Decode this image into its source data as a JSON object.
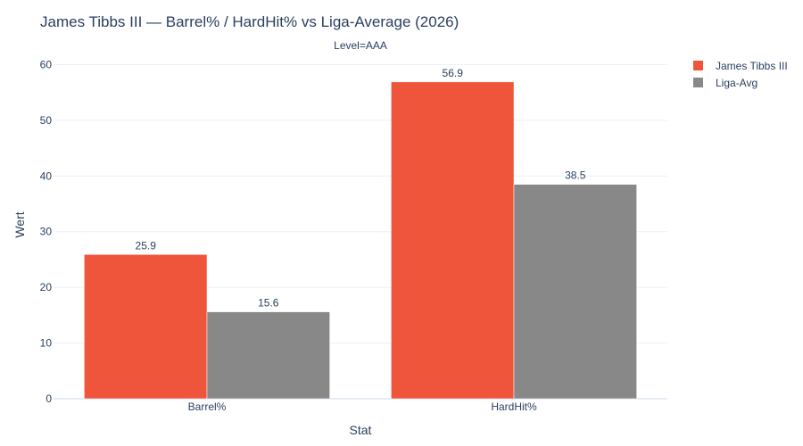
{
  "chart_data": {
    "type": "bar",
    "title": "James Tibbs III — Barrel% / HardHit% vs Liga-Average (2026)",
    "subtitle": "Level=AAA",
    "xlabel": "Stat",
    "ylabel": "Wert",
    "categories": [
      "Barrel%",
      "HardHit%"
    ],
    "series": [
      {
        "name": "James Tibbs III",
        "values": [
          25.9,
          56.9
        ],
        "color": "#ef553b"
      },
      {
        "name": "Liga-Avg",
        "values": [
          15.6,
          38.5
        ],
        "color": "#888888"
      }
    ],
    "data_labels": [
      [
        "25.9",
        "56.9"
      ],
      [
        "15.6",
        "38.5"
      ]
    ],
    "ylim": [
      0,
      62
    ],
    "yticks": [
      0,
      10,
      20,
      30,
      40,
      50,
      60
    ],
    "grid": true,
    "legend": "top-right"
  }
}
